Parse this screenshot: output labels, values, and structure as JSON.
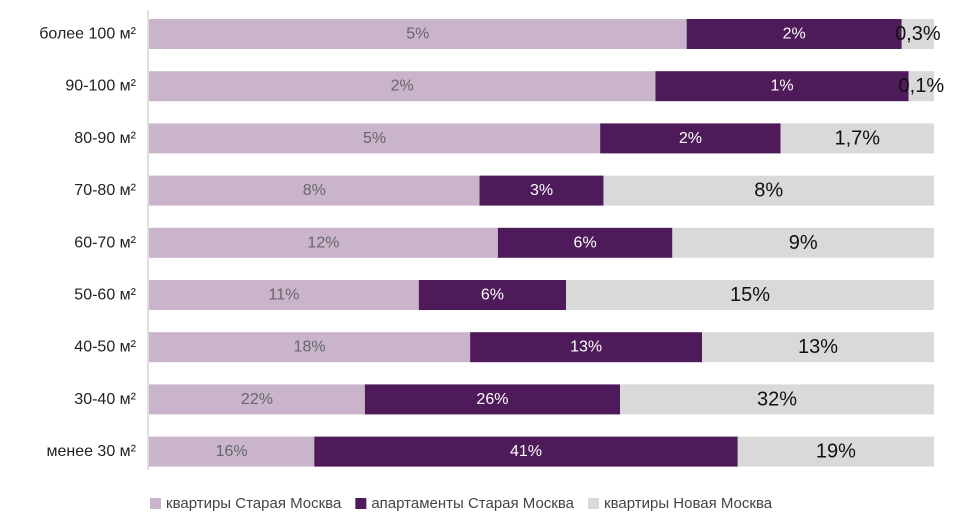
{
  "chart_data": {
    "type": "bar",
    "orientation": "horizontal",
    "stacked": true,
    "categories": [
      "более 100 м²",
      "90-100 м²",
      "80-90 м²",
      "70-80 м²",
      "60-70 м²",
      "50-60 м²",
      "40-50 м²",
      "30-40 м²",
      "менее 30 м²"
    ],
    "series": [
      {
        "name": "квартиры Старая Москва",
        "color": "#c9b4cc",
        "label_color": "#666666",
        "values": [
          5,
          2,
          5,
          8,
          12,
          11,
          18,
          22,
          16
        ],
        "labels": [
          "5%",
          "2%",
          "5%",
          "8%",
          "12%",
          "11%",
          "18%",
          "22%",
          "16%"
        ]
      },
      {
        "name": "апартаменты Старая Москва",
        "color": "#4e1a5a",
        "label_color": "#ffffff",
        "values": [
          2,
          1,
          2,
          3,
          6,
          6,
          13,
          26,
          41
        ],
        "labels": [
          "2%",
          "1%",
          "2%",
          "3%",
          "6%",
          "6%",
          "13%",
          "26%",
          "41%"
        ]
      },
      {
        "name": "квартиры Новая Москва",
        "color": "#d9d9d9",
        "label_color": "#111111",
        "values": [
          0.3,
          0.1,
          1.7,
          8,
          9,
          15,
          13,
          32,
          19
        ],
        "labels": [
          "0,3%",
          "0,1%",
          "1,7%",
          "8%",
          "9%",
          "15%",
          "13%",
          "32%",
          "19%"
        ]
      }
    ],
    "scale": "each bar normalized to 100% of its row",
    "legend_position": "bottom",
    "grid": false
  }
}
